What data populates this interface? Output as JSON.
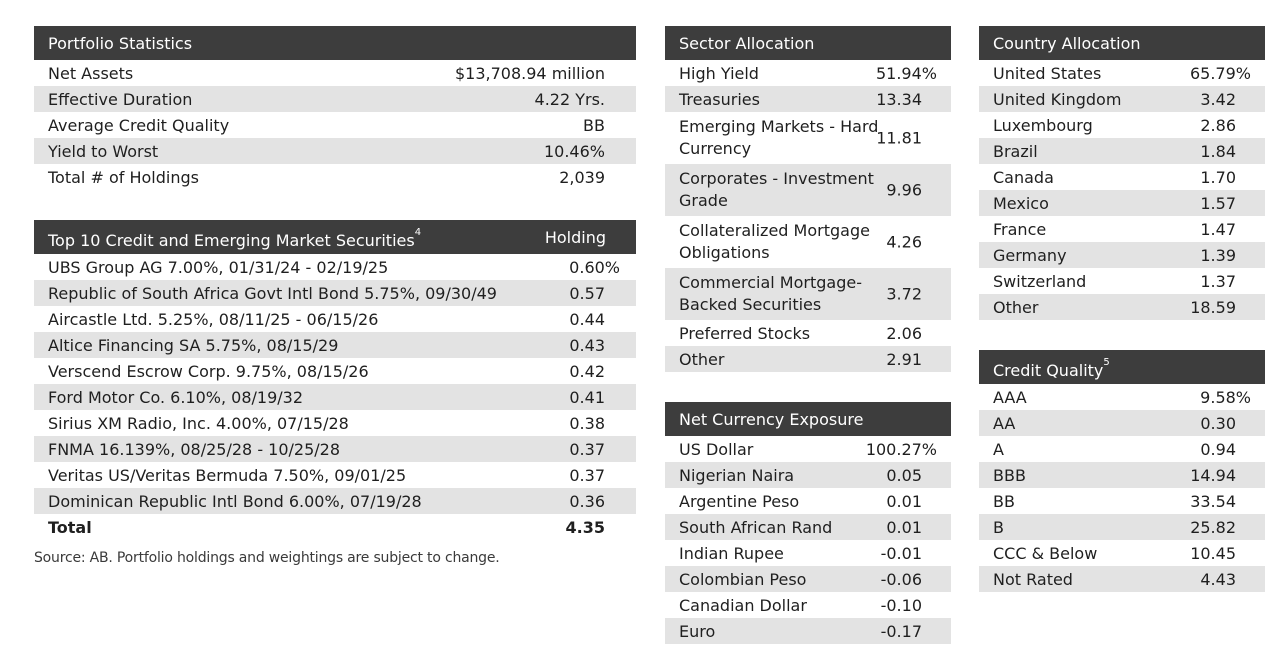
{
  "portfolio_statistics": {
    "title": "Portfolio Statistics",
    "rows": [
      {
        "label": "Net Assets",
        "value": "$13,708.94 million"
      },
      {
        "label": "Effective Duration",
        "value": "4.22 Yrs."
      },
      {
        "label": "Average Credit Quality",
        "value": "BB"
      },
      {
        "label": "Yield to Worst",
        "value": "10.46%"
      },
      {
        "label": "Total # of Holdings",
        "value": "2,039"
      }
    ]
  },
  "top10": {
    "title": "Top 10 Credit and Emerging Market Securities",
    "title_sup": "4",
    "holding_header": "Holding",
    "rows": [
      {
        "label": "UBS Group AG 7.00%, 01/31/24 - 02/19/25",
        "value": "0.60%"
      },
      {
        "label": "Republic of South Africa Govt Intl Bond 5.75%, 09/30/49",
        "value": "0.57"
      },
      {
        "label": "Aircastle Ltd. 5.25%, 08/11/25 - 06/15/26",
        "value": "0.44"
      },
      {
        "label": "Altice Financing SA 5.75%, 08/15/29",
        "value": "0.43"
      },
      {
        "label": "Verscend Escrow Corp. 9.75%, 08/15/26",
        "value": "0.42"
      },
      {
        "label": "Ford Motor Co. 6.10%, 08/19/32",
        "value": "0.41"
      },
      {
        "label": "Sirius XM Radio, Inc. 4.00%, 07/15/28",
        "value": "0.38"
      },
      {
        "label": "FNMA 16.139%, 08/25/28 - 10/25/28",
        "value": "0.37"
      },
      {
        "label": "Veritas US/Veritas Bermuda 7.50%, 09/01/25",
        "value": "0.37"
      },
      {
        "label": "Dominican Republic Intl Bond 6.00%, 07/19/28",
        "value": "0.36"
      }
    ],
    "total_label": "Total",
    "total_value": "4.35"
  },
  "source_note": "Source: AB. Portfolio holdings and weightings are subject to change.",
  "sector_allocation": {
    "title": "Sector Allocation",
    "rows": [
      {
        "label": "High Yield",
        "value": "51.94%"
      },
      {
        "label": "Treasuries",
        "value": "13.34"
      },
      {
        "label": "Emerging Markets - Hard Currency",
        "value": "11.81"
      },
      {
        "label": "Corporates - Investment Grade",
        "value": "9.96"
      },
      {
        "label": "Collateralized Mortgage Obligations",
        "value": "4.26"
      },
      {
        "label": "Commercial Mortgage-Backed Securities",
        "value": "3.72"
      },
      {
        "label": "Preferred Stocks",
        "value": "2.06"
      },
      {
        "label": "Other",
        "value": "2.91"
      }
    ]
  },
  "net_currency_exposure": {
    "title": "Net Currency Exposure",
    "rows": [
      {
        "label": "US Dollar",
        "value": "100.27%"
      },
      {
        "label": "Nigerian Naira",
        "value": "0.05"
      },
      {
        "label": "Argentine Peso",
        "value": "0.01"
      },
      {
        "label": "South African Rand",
        "value": "0.01"
      },
      {
        "label": "Indian Rupee",
        "value": "-0.01"
      },
      {
        "label": "Colombian Peso",
        "value": "-0.06"
      },
      {
        "label": "Canadian Dollar",
        "value": "-0.10"
      },
      {
        "label": "Euro",
        "value": "-0.17"
      }
    ]
  },
  "country_allocation": {
    "title": "Country Allocation",
    "rows": [
      {
        "label": "United States",
        "value": "65.79%"
      },
      {
        "label": "United Kingdom",
        "value": "3.42"
      },
      {
        "label": "Luxembourg",
        "value": "2.86"
      },
      {
        "label": "Brazil",
        "value": "1.84"
      },
      {
        "label": "Canada",
        "value": "1.70"
      },
      {
        "label": "Mexico",
        "value": "1.57"
      },
      {
        "label": "France",
        "value": "1.47"
      },
      {
        "label": "Germany",
        "value": "1.39"
      },
      {
        "label": "Switzerland",
        "value": "1.37"
      },
      {
        "label": "Other",
        "value": "18.59"
      }
    ]
  },
  "credit_quality": {
    "title": "Credit Quality",
    "title_sup": "5",
    "rows": [
      {
        "label": "AAA",
        "value": "9.58%"
      },
      {
        "label": "AA",
        "value": "0.30"
      },
      {
        "label": "A",
        "value": "0.94"
      },
      {
        "label": "BBB",
        "value": "14.94"
      },
      {
        "label": "BB",
        "value": "33.54"
      },
      {
        "label": "B",
        "value": "25.82"
      },
      {
        "label": "CCC & Below",
        "value": "10.45"
      },
      {
        "label": "Not Rated",
        "value": "4.43"
      }
    ]
  }
}
